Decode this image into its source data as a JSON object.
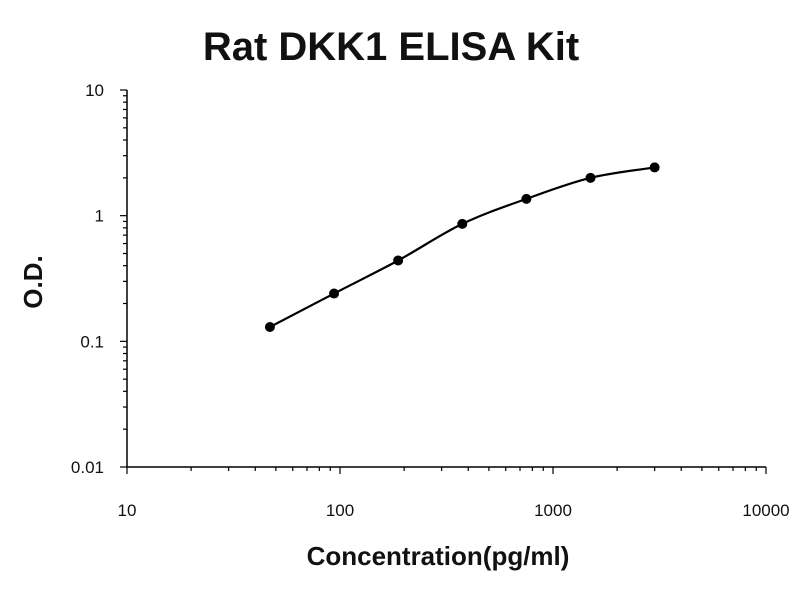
{
  "chart_data": {
    "type": "scatter",
    "title": "Rat DKK1 ELISA Kit",
    "xlabel": "Concentration(pg/ml)",
    "ylabel": "O.D.",
    "xscale": "log",
    "yscale": "log",
    "xlim": [
      10,
      10000
    ],
    "ylim": [
      0.01,
      10
    ],
    "x_ticks": [
      10,
      100,
      1000,
      10000
    ],
    "x_tick_labels": [
      "10",
      "100",
      "1000",
      "10000"
    ],
    "y_ticks": [
      0.01,
      0.1,
      1,
      10
    ],
    "y_tick_labels": [
      "0.01",
      "0.1",
      "1",
      "10"
    ],
    "grid": false,
    "legend": "none",
    "series": [
      {
        "x": [
          46.88,
          93.75,
          187.5,
          375,
          750,
          1500,
          3000
        ],
        "y": [
          0.13,
          0.24,
          0.44,
          0.86,
          1.36,
          2.0,
          2.42
        ],
        "marker": "circle",
        "fit_line": "smooth",
        "color": "#000000"
      }
    ]
  }
}
